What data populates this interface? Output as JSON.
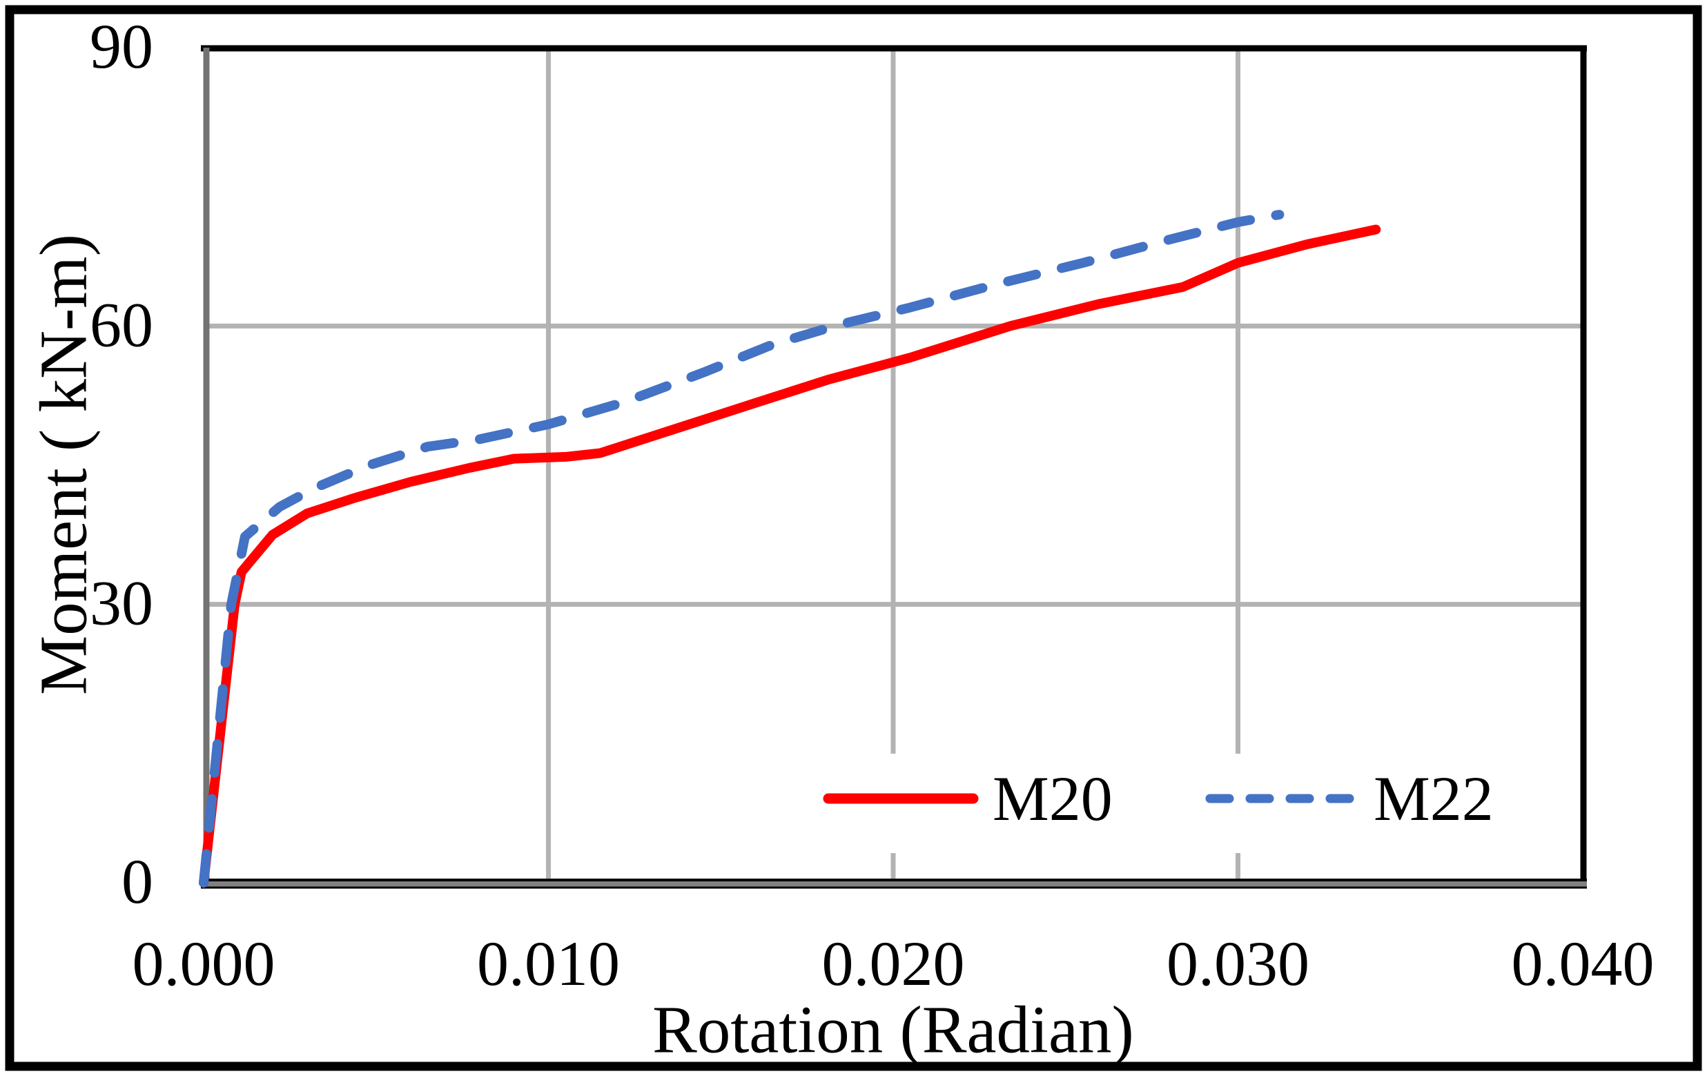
{
  "figure": {
    "background_color": "#ffffff",
    "outer_border_color": "#000000"
  },
  "chart_data": {
    "type": "line",
    "title": "",
    "xlabel": "Rotation (Radian)",
    "ylabel": "Moment ( kN-m)",
    "xlim": [
      0.0,
      0.04
    ],
    "ylim": [
      0,
      90
    ],
    "grid": true,
    "x_ticks": {
      "values": [
        0.0,
        0.01,
        0.02,
        0.03,
        0.04
      ],
      "labels": [
        "0.000",
        "0.010",
        "0.020",
        "0.030",
        "0.040"
      ]
    },
    "y_ticks": {
      "values": [
        0,
        30,
        60,
        90
      ],
      "labels": [
        "0",
        "30",
        "60",
        "90"
      ]
    },
    "colors": {
      "gridline": "#b3b3b3",
      "axis_left": "#737373",
      "axis_bottom": "#808080",
      "plot_border": "#000000",
      "m20": "#ff0000",
      "m22": "#4472c4"
    },
    "legend": {
      "position": "inside-bottom",
      "items": [
        "M20",
        "M22"
      ]
    },
    "series": [
      {
        "name": "M20",
        "color": "#ff0000",
        "style": "solid",
        "points": [
          [
            0.0,
            0
          ],
          [
            0.0009,
            30
          ],
          [
            0.0011,
            33.5
          ],
          [
            0.002,
            37.5
          ],
          [
            0.003,
            39.8
          ],
          [
            0.0044,
            41.5
          ],
          [
            0.006,
            43.2
          ],
          [
            0.0077,
            44.7
          ],
          [
            0.009,
            45.7
          ],
          [
            0.0105,
            45.9
          ],
          [
            0.0115,
            46.3
          ],
          [
            0.014,
            49.3
          ],
          [
            0.016,
            51.7
          ],
          [
            0.0181,
            54.2
          ],
          [
            0.0205,
            56.6
          ],
          [
            0.0234,
            60.0
          ],
          [
            0.026,
            62.4
          ],
          [
            0.0272,
            63.3
          ],
          [
            0.0284,
            64.2
          ],
          [
            0.03,
            66.8
          ],
          [
            0.032,
            68.8
          ],
          [
            0.034,
            70.4
          ]
        ]
      },
      {
        "name": "M22",
        "color": "#4472c4",
        "style": "dashed",
        "points": [
          [
            0.0,
            0
          ],
          [
            0.0008,
            30
          ],
          [
            0.0012,
            37.3
          ],
          [
            0.0022,
            40.5
          ],
          [
            0.0032,
            42.5
          ],
          [
            0.0048,
            45.0
          ],
          [
            0.0065,
            47.0
          ],
          [
            0.008,
            47.8
          ],
          [
            0.01,
            49.4
          ],
          [
            0.0122,
            51.8
          ],
          [
            0.0145,
            55.0
          ],
          [
            0.0165,
            58.0
          ],
          [
            0.0185,
            60.2
          ],
          [
            0.0205,
            62.0
          ],
          [
            0.023,
            64.5
          ],
          [
            0.0255,
            66.8
          ],
          [
            0.028,
            69.3
          ],
          [
            0.03,
            71.2
          ],
          [
            0.0312,
            72.0
          ]
        ]
      }
    ]
  }
}
